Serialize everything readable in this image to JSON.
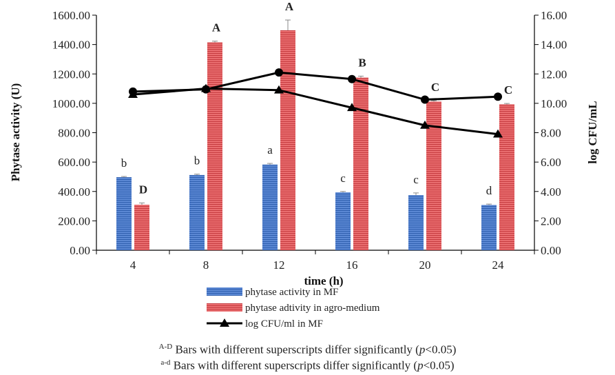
{
  "chart_data": {
    "type": "bar",
    "xlabel": "time (h)",
    "ylabel": "Phytase activity (U)",
    "y2label": "log CFU/mL",
    "categories": [
      "4",
      "8",
      "12",
      "16",
      "20",
      "24"
    ],
    "ylim": [
      0,
      1600
    ],
    "y2lim": [
      0,
      16
    ],
    "yticks": [
      "0.00",
      "200.00",
      "400.00",
      "600.00",
      "800.00",
      "1000.00",
      "1200.00",
      "1400.00",
      "1600.00"
    ],
    "y2ticks": [
      "0.00",
      "2.00",
      "4.00",
      "6.00",
      "8.00",
      "10.00",
      "12.00",
      "14.00",
      "16.00"
    ],
    "series": [
      {
        "name": "phytase activity in MF",
        "kind": "bar",
        "color": "#4a78c8",
        "values": [
          497,
          512,
          583,
          394,
          375,
          308
        ],
        "errors": [
          5,
          6,
          8,
          6,
          15,
          6
        ],
        "labels": [
          "b",
          "b",
          "a",
          "c",
          "c",
          "d"
        ]
      },
      {
        "name": "phytase adtivity in agro-medium",
        "kind": "bar",
        "color": "#e0595c",
        "values": [
          310,
          1415,
          1497,
          1175,
          1012,
          993
        ],
        "errors": [
          12,
          8,
          70,
          10,
          6,
          6
        ],
        "labels": [
          "D",
          "A",
          "A",
          "B",
          "C",
          "C"
        ]
      },
      {
        "name": "log CFU/ml in MF",
        "kind": "line",
        "axis": "right",
        "marker": "triangle",
        "color": "#000000",
        "values": [
          10.6,
          11.0,
          10.9,
          9.7,
          8.5,
          7.9
        ]
      },
      {
        "kind": "line",
        "axis": "right",
        "marker": "circle",
        "color": "#000000",
        "values": [
          10.8,
          10.95,
          12.1,
          11.65,
          10.25,
          10.45
        ]
      }
    ],
    "footnotes": [
      {
        "sup": "A-D",
        "text": " Bars with different superscripts differ significantly (",
        "p": "p",
        "tail": "<0.05)"
      },
      {
        "sup": "a-d",
        "text": " Bars with different superscripts differ significantly (",
        "p": "p",
        "tail": "<0.05)"
      }
    ]
  }
}
